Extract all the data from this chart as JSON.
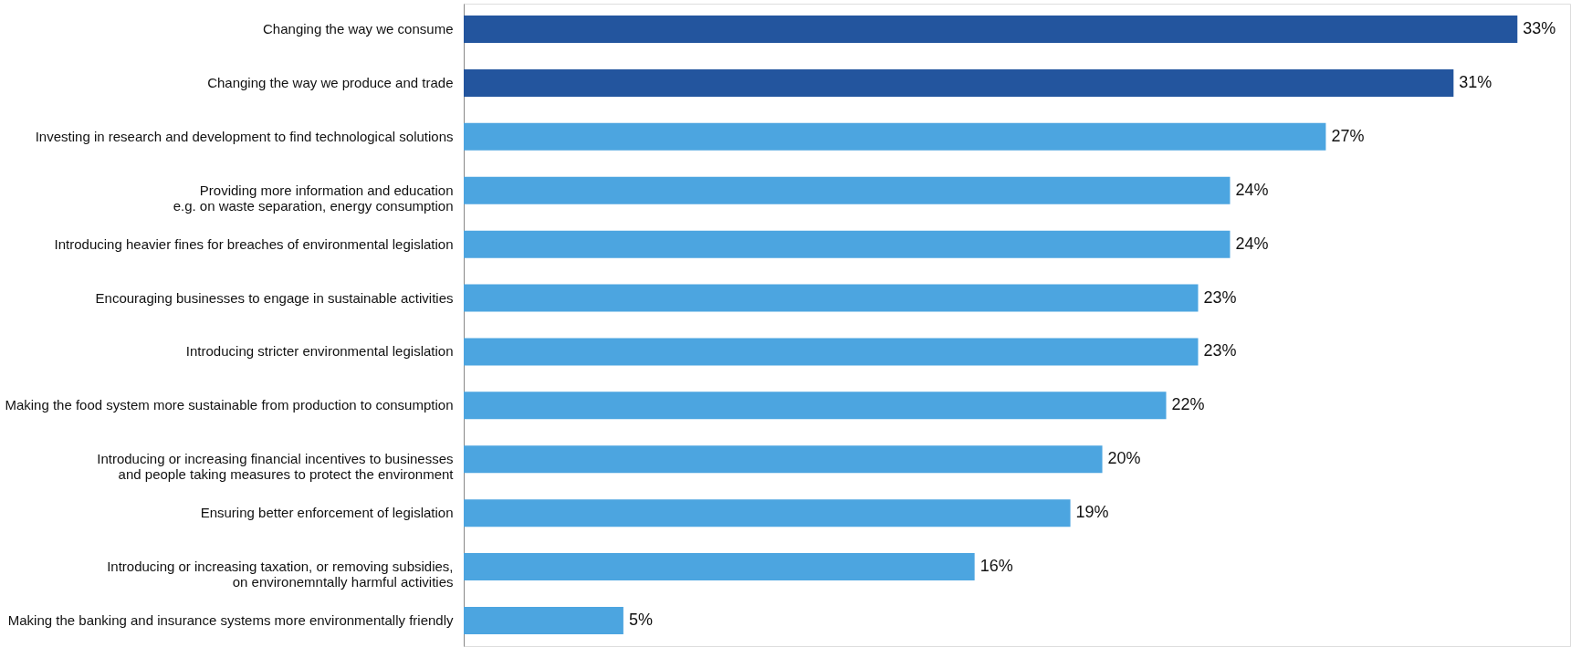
{
  "chart_data": {
    "type": "bar",
    "orientation": "horizontal",
    "categories": [
      "Changing the way we consume",
      "Changing the way we produce and trade",
      "Investing in research and development to find technological solutions",
      "Providing more information and education\ne.g. on waste separation, energy consumption",
      "Introducing heavier fines for breaches of environmental legislation",
      "Encouraging businesses to engage in sustainable activities",
      "Introducing stricter environmental legislation",
      "Making the food system more sustainable from production to consumption",
      "Introducing or increasing financial incentives to businesses\nand people taking measures to protect the environment",
      "Ensuring better enforcement of legislation",
      "Introducing or increasing taxation, or removing subsidies,\non environemntally harmful activities",
      "Making the banking and insurance systems more environmentally friendly"
    ],
    "values": [
      33,
      31,
      27,
      24,
      24,
      23,
      23,
      22,
      20,
      19,
      16,
      5
    ],
    "value_labels": [
      "33%",
      "31%",
      "27%",
      "24%",
      "24%",
      "23%",
      "23%",
      "22%",
      "20%",
      "19%",
      "16%",
      "5%"
    ],
    "colors": [
      "#23559e",
      "#23559e",
      "#4ca5e0",
      "#4ca5e0",
      "#4ca5e0",
      "#4ca5e0",
      "#4ca5e0",
      "#4ca5e0",
      "#4ca5e0",
      "#4ca5e0",
      "#4ca5e0",
      "#4ca5e0"
    ]
  }
}
